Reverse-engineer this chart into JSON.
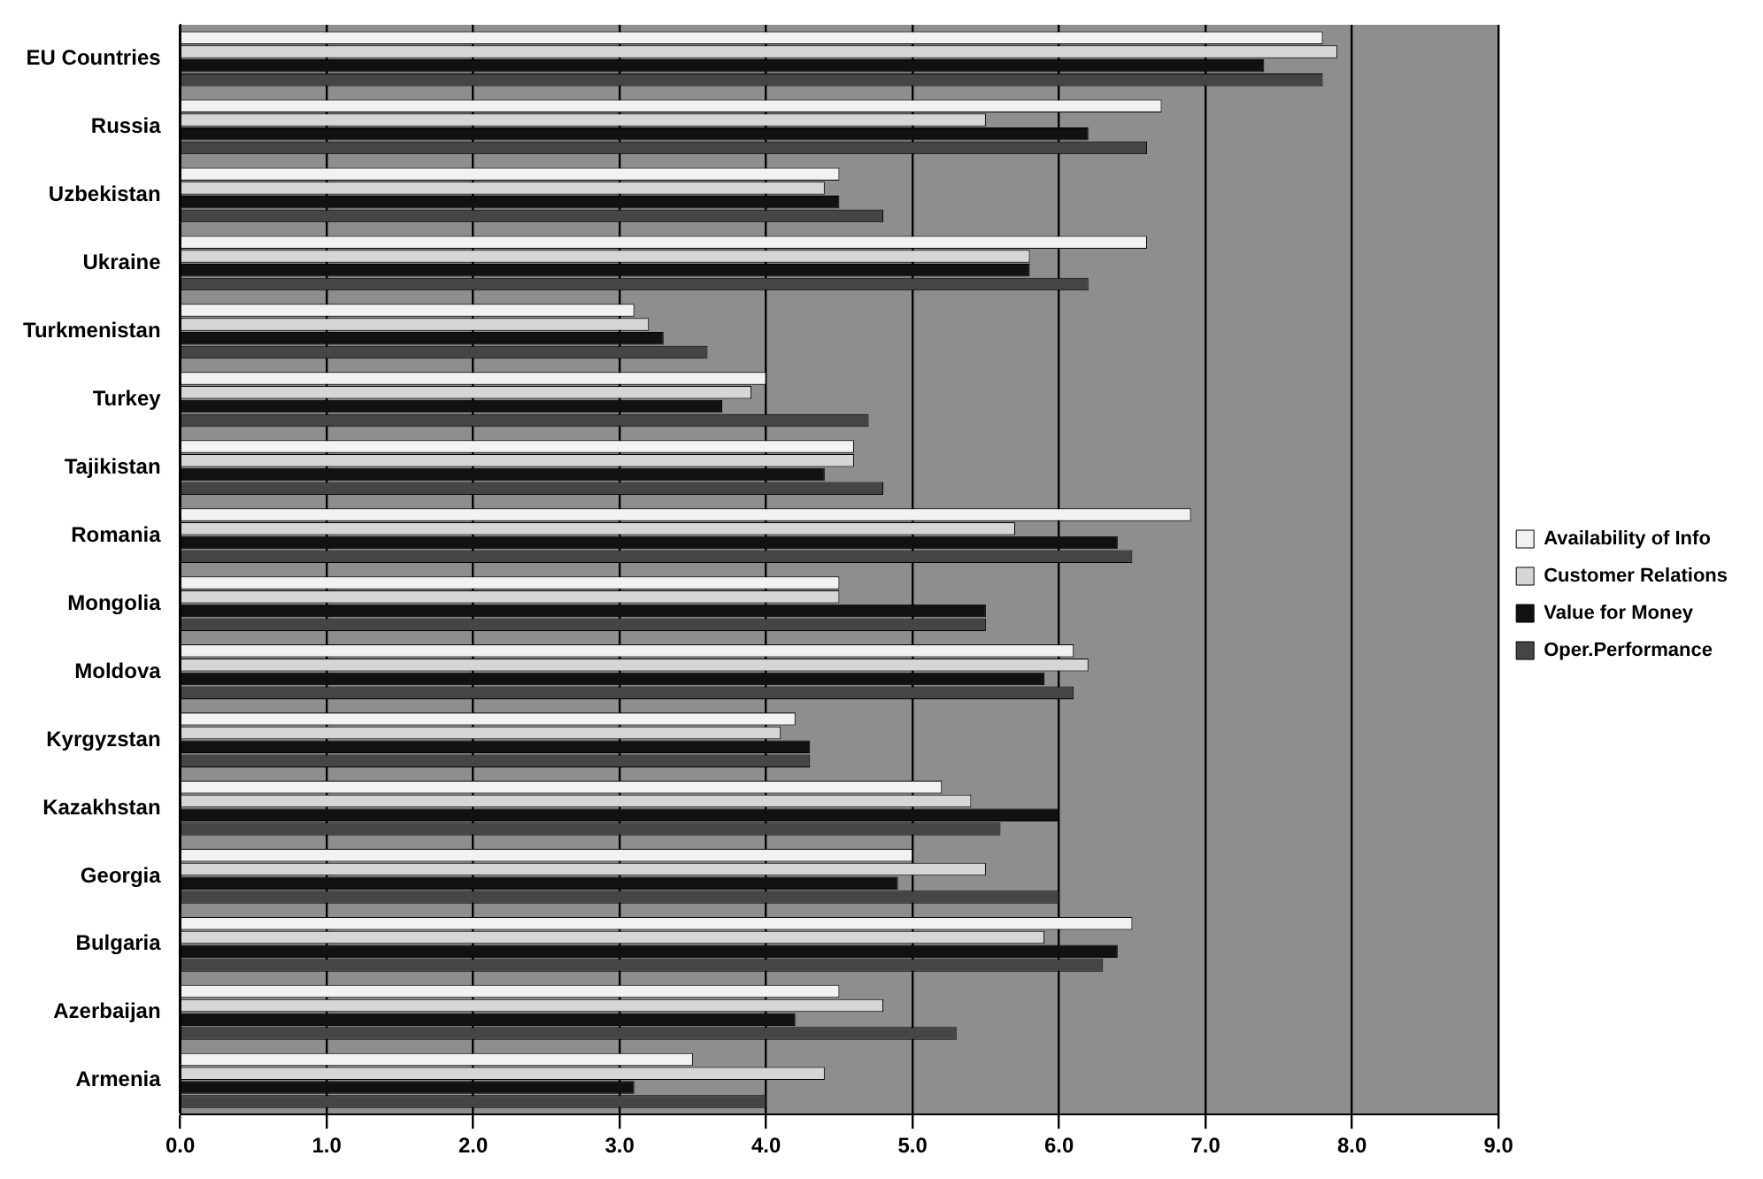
{
  "chart_data": {
    "type": "bar",
    "orientation": "horizontal",
    "categories": [
      "EU Countries",
      "Russia",
      "Uzbekistan",
      "Ukraine",
      "Turkmenistan",
      "Turkey",
      "Tajikistan",
      "Romania",
      "Mongolia",
      "Moldova",
      "Kyrgyzstan",
      "Kazakhstan",
      "Georgia",
      "Bulgaria",
      "Azerbaijan",
      "Armenia"
    ],
    "series": [
      {
        "name": "Availability of Info",
        "color": "#f2f2f2",
        "values": [
          7.8,
          6.7,
          4.5,
          6.6,
          3.1,
          4.0,
          4.6,
          6.9,
          4.5,
          6.1,
          4.2,
          5.2,
          5.0,
          6.5,
          4.5,
          3.5
        ]
      },
      {
        "name": "Customer Relations",
        "color": "#d6d6d6",
        "values": [
          7.9,
          5.5,
          4.4,
          5.8,
          3.2,
          3.9,
          4.6,
          5.7,
          4.5,
          6.2,
          4.1,
          5.4,
          5.5,
          5.9,
          4.8,
          4.4
        ]
      },
      {
        "name": "Value for Money",
        "color": "#111111",
        "values": [
          7.4,
          6.2,
          4.5,
          5.8,
          3.3,
          3.7,
          4.4,
          6.4,
          5.5,
          5.9,
          4.3,
          6.0,
          4.9,
          6.4,
          4.2,
          3.1
        ]
      },
      {
        "name": "Oper.Performance",
        "color": "#454545",
        "values": [
          7.8,
          6.6,
          4.8,
          6.2,
          3.6,
          4.7,
          4.8,
          6.5,
          5.5,
          6.1,
          4.3,
          5.6,
          6.0,
          6.3,
          5.3,
          4.0
        ]
      }
    ],
    "xlim": [
      0,
      9
    ],
    "xticks": [
      {
        "value": 0,
        "label": "0.0"
      },
      {
        "value": 1,
        "label": "1.0"
      },
      {
        "value": 2,
        "label": "2.0"
      },
      {
        "value": 3,
        "label": "3.0"
      },
      {
        "value": 4,
        "label": "4.0"
      },
      {
        "value": 5,
        "label": "5.0"
      },
      {
        "value": 6,
        "label": "6.0"
      },
      {
        "value": 7,
        "label": "7.0"
      },
      {
        "value": 8,
        "label": "8.0"
      },
      {
        "value": 9,
        "label": "9.0"
      }
    ],
    "grid": "x",
    "legend": "right"
  }
}
